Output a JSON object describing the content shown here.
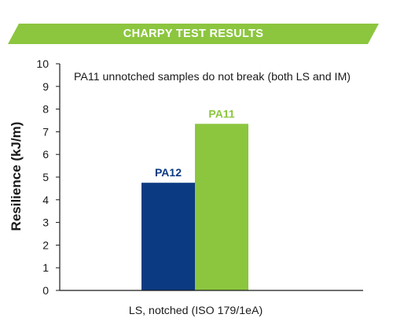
{
  "banner": {
    "title": "CHARPY TEST RESULTS"
  },
  "colors": {
    "banner": "#8cc63f",
    "pa12": "#0b3a82",
    "pa11": "#8cc63f",
    "axis": "#1a1a1a",
    "text": "#1a1a1a"
  },
  "chart_data": {
    "type": "bar",
    "title": "CHARPY TEST RESULTS",
    "ylabel": "Resilience (kJ/m)",
    "xlabel": "LS, notched (ISO 179/1eA)",
    "ylim": [
      0,
      10
    ],
    "yticks": [
      0,
      1,
      2,
      3,
      4,
      5,
      6,
      7,
      8,
      9,
      10
    ],
    "categories": [
      "LS, notched (ISO 179/1eA)"
    ],
    "series": [
      {
        "name": "PA12",
        "values": [
          4.75
        ],
        "color": "#0b3a82"
      },
      {
        "name": "PA11",
        "values": [
          7.35
        ],
        "color": "#8cc63f"
      }
    ],
    "annotation": "PA11 unnotched samples do not break (both LS and IM)",
    "grid": false,
    "legend": "none"
  }
}
